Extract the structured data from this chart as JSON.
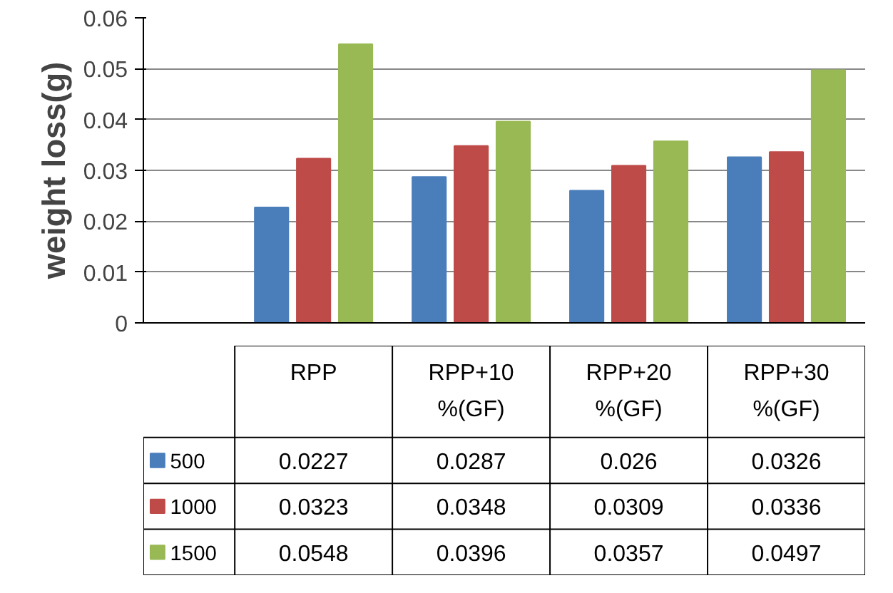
{
  "chart_data": {
    "type": "bar",
    "ylabel": "weight loss(g)",
    "categories": [
      "RPP",
      "RPP+10 %(GF)",
      "RPP+20 %(GF)",
      "RPP+30 %(GF)"
    ],
    "series": [
      {
        "name": "500",
        "color": "#4a7ebb",
        "values": [
          0.0227,
          0.0287,
          0.026,
          0.0326
        ]
      },
      {
        "name": "1000",
        "color": "#be4b48",
        "values": [
          0.0323,
          0.0348,
          0.0309,
          0.0336
        ]
      },
      {
        "name": "1500",
        "color": "#98b954",
        "values": [
          0.0548,
          0.0396,
          0.0357,
          0.0497
        ]
      }
    ],
    "ylim": [
      0,
      0.06
    ],
    "yticks": [
      0,
      0.01,
      0.02,
      0.03,
      0.04,
      0.05,
      0.06
    ],
    "grid": "y",
    "legend": "bottom",
    "data_labels": true,
    "tick_labels": "y"
  }
}
